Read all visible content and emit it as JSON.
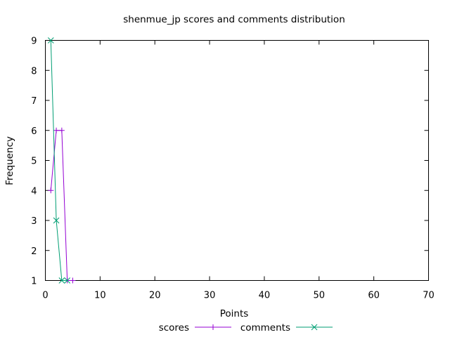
{
  "chart_data": {
    "type": "line",
    "title": "shenmue_jp scores and comments distribution",
    "xlabel": "Points",
    "ylabel": "Frequency",
    "xlim": [
      0,
      70
    ],
    "ylim": [
      1,
      9
    ],
    "xticks": [
      "0",
      "10",
      "20",
      "30",
      "40",
      "50",
      "60",
      "70"
    ],
    "yticks": [
      "1",
      "2",
      "3",
      "4",
      "5",
      "6",
      "7",
      "8",
      "9"
    ],
    "grid": false,
    "legend_position": "bottom-center",
    "series": [
      {
        "name": "scores",
        "color": "#9400d3",
        "marker": "plus",
        "points": [
          [
            1,
            4
          ],
          [
            2,
            6
          ],
          [
            3,
            6
          ],
          [
            4,
            1
          ],
          [
            5,
            1
          ]
        ]
      },
      {
        "name": "comments",
        "color": "#009e73",
        "marker": "cross",
        "points": [
          [
            1,
            9
          ],
          [
            2,
            3
          ],
          [
            3,
            1
          ],
          [
            4,
            1
          ]
        ]
      }
    ]
  }
}
